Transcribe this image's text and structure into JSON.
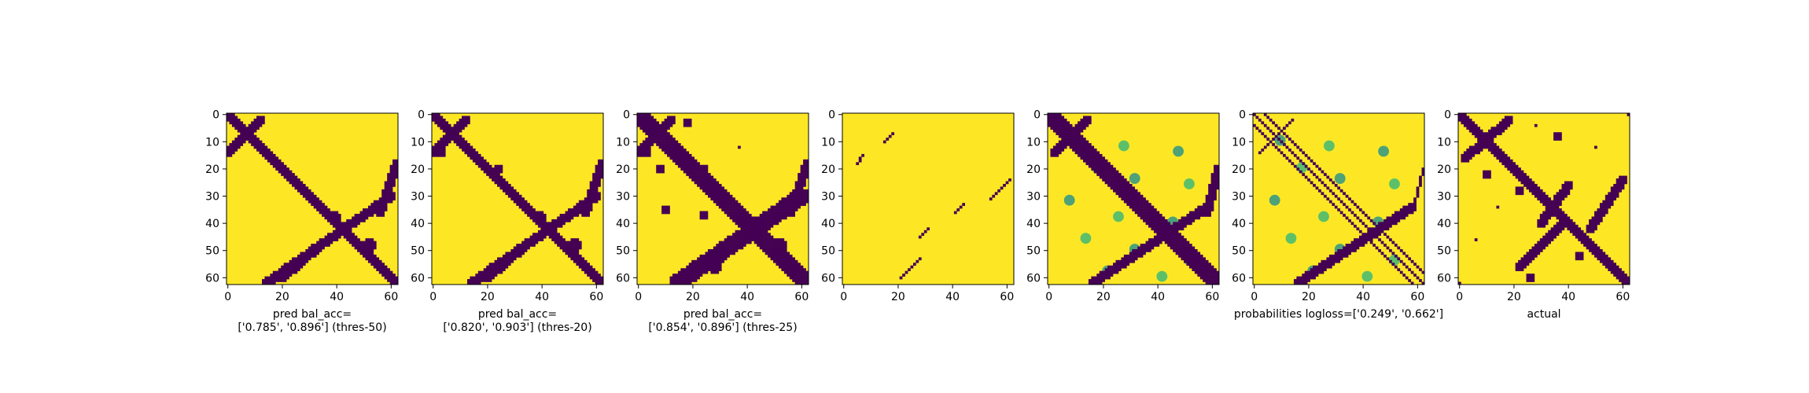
{
  "colors": {
    "low": "#440154",
    "mid_low": "#31688e",
    "mid": "#21918c",
    "mid_high": "#35b779",
    "high": "#fde725",
    "frame": "#000000"
  },
  "chart_data": [
    {
      "type": "heatmap",
      "id": "panel-1",
      "size": 63,
      "xticks": [
        0,
        20,
        40,
        60
      ],
      "yticks": [
        0,
        10,
        20,
        30,
        40,
        50,
        60
      ],
      "xlim": [
        0,
        62
      ],
      "ylim": [
        62,
        0
      ],
      "xlabel_lines": [
        "pred bal_acc=",
        "['0.785', '0.896'] (thres-50)"
      ],
      "colormap": "viridis",
      "description_values": "binary contact map (0 = dark, 1 = yellow)"
    },
    {
      "type": "heatmap",
      "id": "panel-2",
      "size": 63,
      "xticks": [
        0,
        20,
        40,
        60
      ],
      "yticks": [
        0,
        10,
        20,
        30,
        40,
        50,
        60
      ],
      "xlim": [
        0,
        62
      ],
      "ylim": [
        62,
        0
      ],
      "xlabel_lines": [
        "pred bal_acc=",
        "['0.820', '0.903'] (thres-20)"
      ],
      "colormap": "viridis"
    },
    {
      "type": "heatmap",
      "id": "panel-3",
      "size": 63,
      "xticks": [
        0,
        20,
        40,
        60
      ],
      "yticks": [
        0,
        10,
        20,
        30,
        40,
        50,
        60
      ],
      "xlim": [
        0,
        62
      ],
      "ylim": [
        62,
        0
      ],
      "xlabel_lines": [
        "pred bal_acc=",
        "['0.854', '0.896'] (thres-25)"
      ],
      "colormap": "viridis"
    },
    {
      "type": "heatmap",
      "id": "panel-4",
      "size": 63,
      "xticks": [
        0,
        20,
        40,
        60
      ],
      "yticks": [
        0,
        10,
        20,
        30,
        40,
        50,
        60
      ],
      "xlim": [
        0,
        62
      ],
      "ylim": [
        62,
        0
      ],
      "xlabel_lines": [],
      "colormap": "viridis"
    },
    {
      "type": "heatmap",
      "id": "panel-5",
      "size": 63,
      "xticks": [
        0,
        20,
        40,
        60
      ],
      "yticks": [
        0,
        10,
        20,
        30,
        40,
        50,
        60
      ],
      "xlim": [
        0,
        62
      ],
      "ylim": [
        62,
        0
      ],
      "xlabel_lines": [],
      "colormap": "viridis"
    },
    {
      "type": "heatmap",
      "id": "panel-6",
      "size": 63,
      "xticks": [
        0,
        20,
        40,
        60
      ],
      "yticks": [
        0,
        10,
        20,
        30,
        40,
        50,
        60
      ],
      "xlim": [
        0,
        62
      ],
      "ylim": [
        62,
        0
      ],
      "xlabel_lines": [
        "probabilities logloss=['0.249', '0.662']"
      ],
      "colormap": "viridis"
    },
    {
      "type": "heatmap",
      "id": "panel-7",
      "size": 63,
      "xticks": [
        0,
        20,
        40,
        60
      ],
      "yticks": [
        0,
        10,
        20,
        30,
        40,
        50,
        60
      ],
      "xlim": [
        0,
        62
      ],
      "ylim": [
        62,
        0
      ],
      "xlabel_lines": [
        "actual"
      ],
      "colormap": "viridis"
    }
  ]
}
